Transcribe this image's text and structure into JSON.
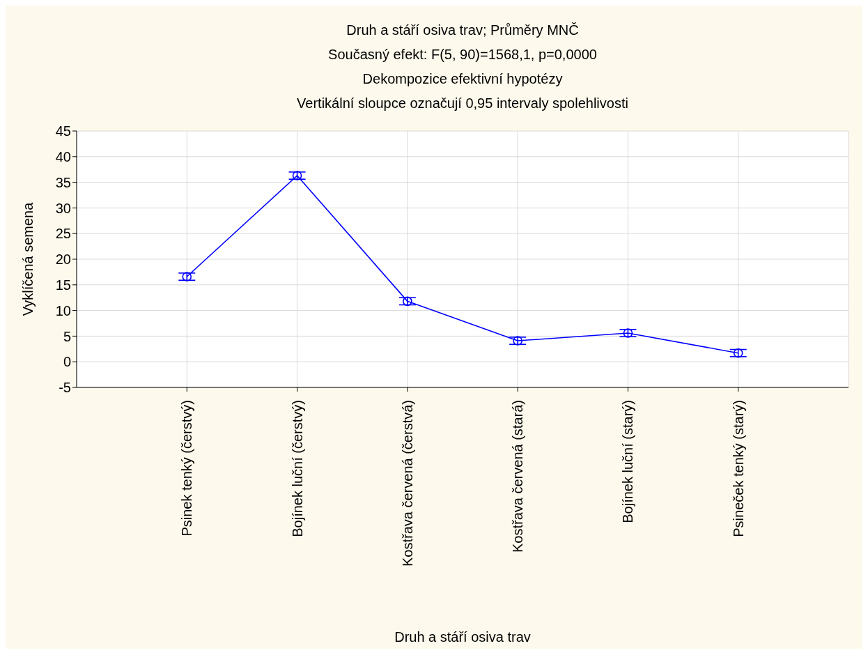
{
  "chart_data": {
    "type": "line",
    "title": "Druh a stáří osiva trav; Průměry MNČ",
    "subtitle": "Současný efekt: F(5, 90)=1568,1, p=0,0000",
    "annotations": [
      "Dekompozice efektivní hypotézy",
      "Vertikální sloupce označují 0,95 intervaly spolehlivosti"
    ],
    "xlabel": "Druh a stáří osiva trav",
    "ylabel": "Vyklíčená semena",
    "categories": [
      "Psinek tenký (čerstvý)",
      "Bojínek luční (čerstvý)",
      "Kostřava červená (čerstvá)",
      "Kostřava červená (stará)",
      "Bojínek luční (starý)",
      "Psineček tenký (starý)"
    ],
    "series": [
      {
        "color": "#0000ff",
        "values": [
          16.6,
          36.3,
          11.8,
          4.1,
          5.6,
          1.7
        ],
        "errors": [
          0.7,
          0.7,
          0.7,
          0.7,
          0.7,
          0.7
        ]
      }
    ],
    "ylim": [
      -5,
      45
    ],
    "yticks": [
      -5,
      0,
      5,
      10,
      15,
      20,
      25,
      30,
      35,
      40,
      45
    ],
    "grid": true,
    "legend": false,
    "marker": "circle",
    "line_style": "solid"
  }
}
